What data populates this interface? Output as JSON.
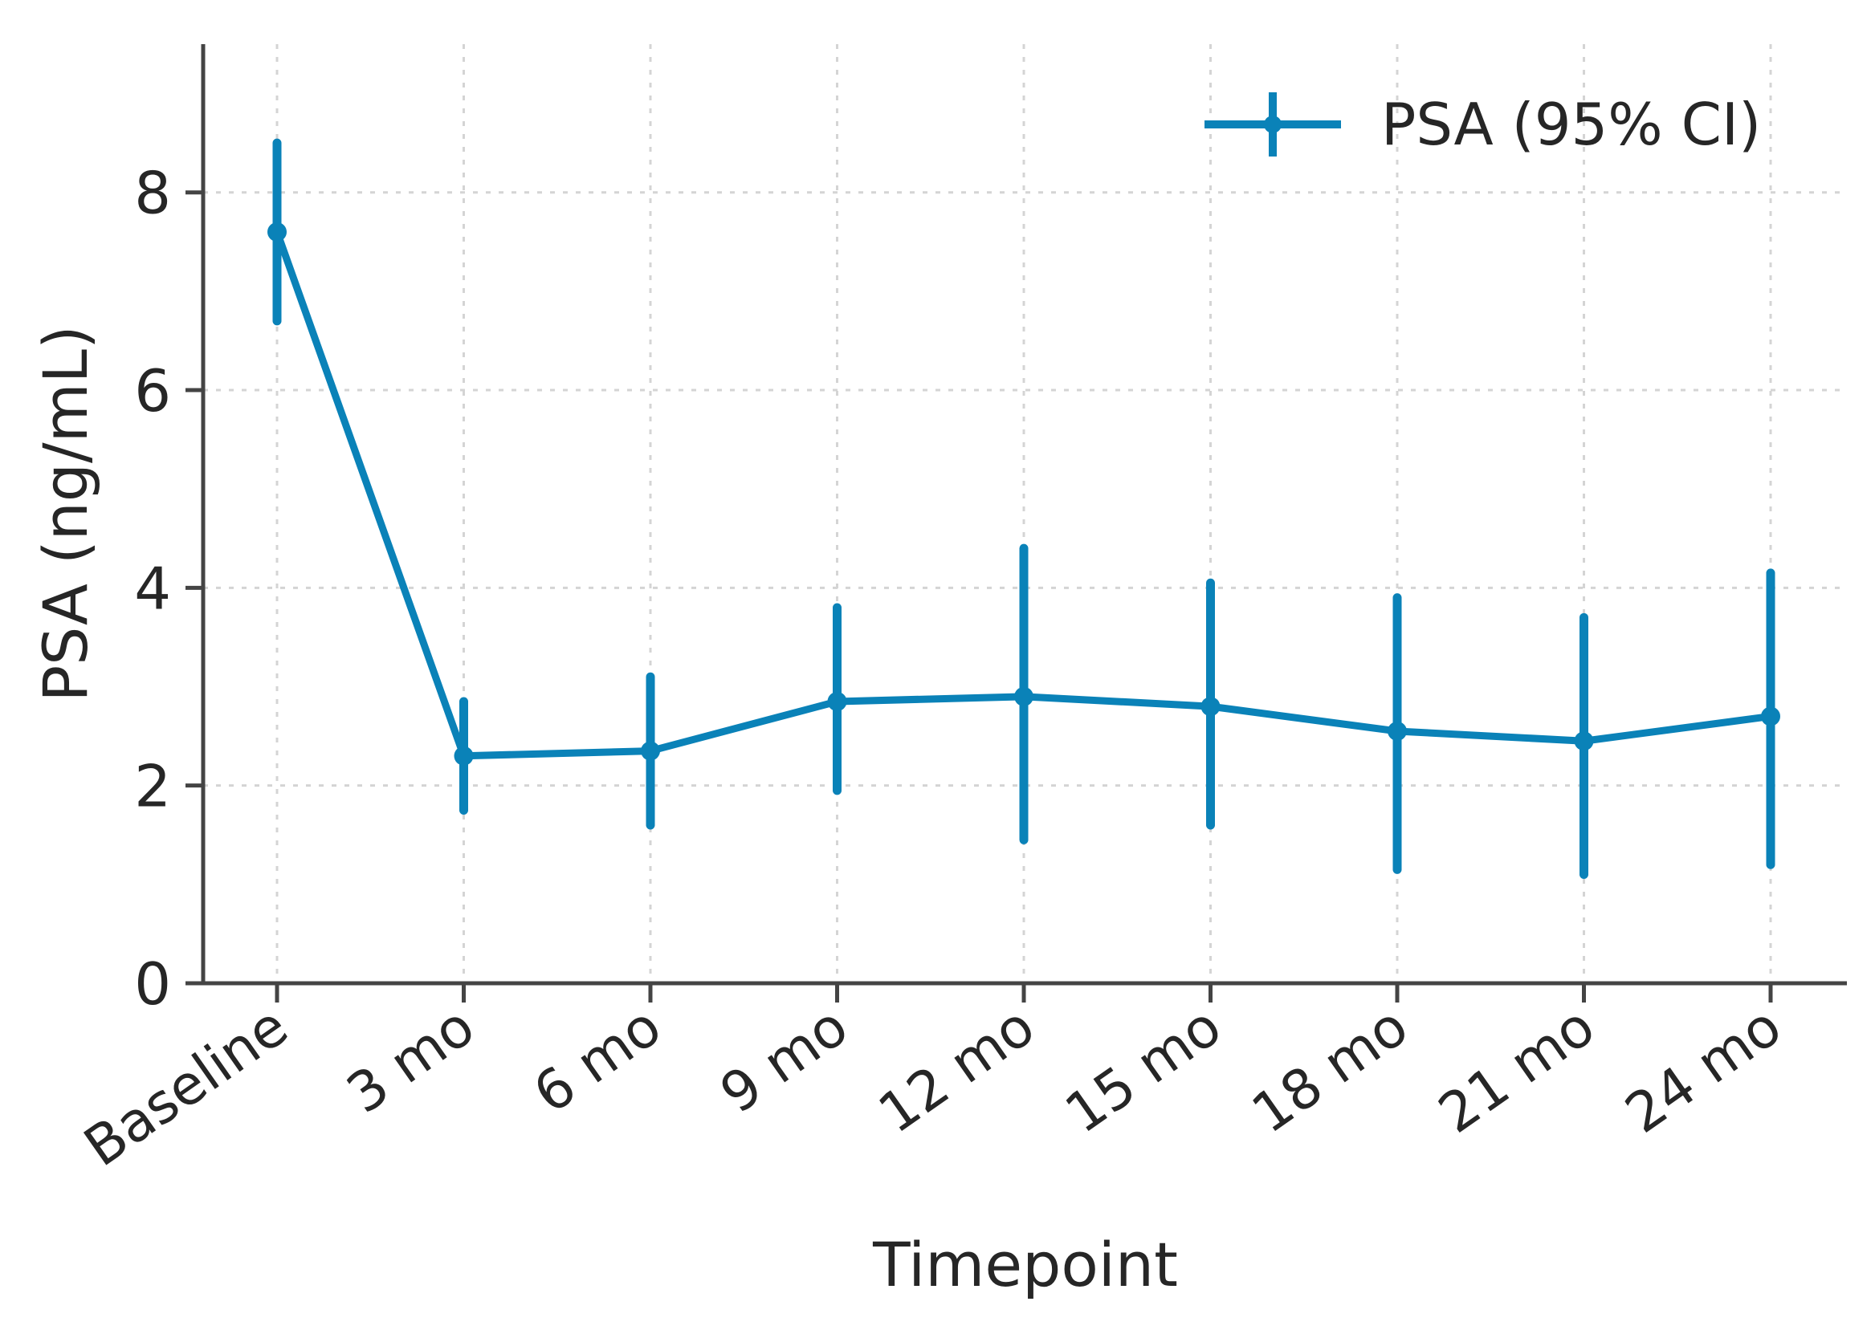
{
  "chart_data": {
    "type": "line",
    "xlabel": "Timepoint",
    "ylabel": "PSA (ng/mL)",
    "categories": [
      "Baseline",
      "3 mo",
      "6 mo",
      "9 mo",
      "12 mo",
      "15 mo",
      "18 mo",
      "21 mo",
      "24 mo"
    ],
    "yticks": [
      "0",
      "2",
      "4",
      "6",
      "8"
    ],
    "ylim": [
      0,
      9.5
    ],
    "grid": true,
    "legend_position": "top-right",
    "series": [
      {
        "name": "PSA (95% CI)",
        "color": "#0a82b8",
        "values": [
          7.6,
          2.3,
          2.35,
          2.85,
          2.9,
          2.8,
          2.55,
          2.45,
          2.7
        ],
        "ci_low": [
          6.7,
          1.75,
          1.6,
          1.95,
          1.45,
          1.6,
          1.15,
          1.1,
          1.2
        ],
        "ci_high": [
          8.5,
          2.85,
          3.1,
          3.8,
          4.4,
          4.05,
          3.9,
          3.7,
          4.15
        ]
      }
    ]
  }
}
